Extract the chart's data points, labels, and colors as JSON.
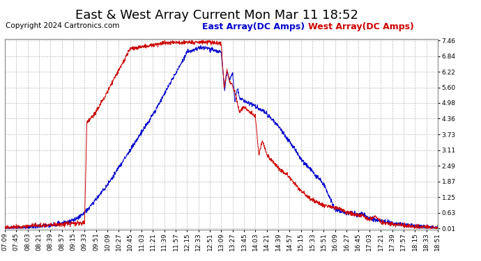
{
  "title": "East & West Array Current Mon Mar 11 18:52",
  "copyright": "Copyright 2024 Cartronics.com",
  "east_label": "East Array(DC Amps)",
  "west_label": "West Array(DC Amps)",
  "east_color": "#0000cc",
  "west_color": "#cc0000",
  "background_color": "#ffffff",
  "grid_color": "#bbbbbb",
  "yticks": [
    0.01,
    0.63,
    1.25,
    1.87,
    2.49,
    3.11,
    3.73,
    4.36,
    4.98,
    5.6,
    6.22,
    6.84,
    7.46
  ],
  "xtick_labels": [
    "07:09",
    "07:45",
    "08:03",
    "08:21",
    "08:39",
    "08:57",
    "09:15",
    "09:33",
    "09:51",
    "10:09",
    "10:27",
    "10:45",
    "11:03",
    "11:21",
    "11:39",
    "11:57",
    "12:15",
    "12:33",
    "12:51",
    "13:09",
    "13:27",
    "13:45",
    "14:03",
    "14:21",
    "14:39",
    "14:57",
    "15:15",
    "15:33",
    "15:51",
    "16:09",
    "16:27",
    "16:45",
    "17:03",
    "17:21",
    "17:39",
    "17:57",
    "18:15",
    "18:33",
    "18:51"
  ],
  "ymin": 0.01,
  "ymax": 7.46,
  "title_fontsize": 13,
  "copyright_fontsize": 7.5,
  "legend_fontsize": 9,
  "axis_fontsize": 6.5
}
